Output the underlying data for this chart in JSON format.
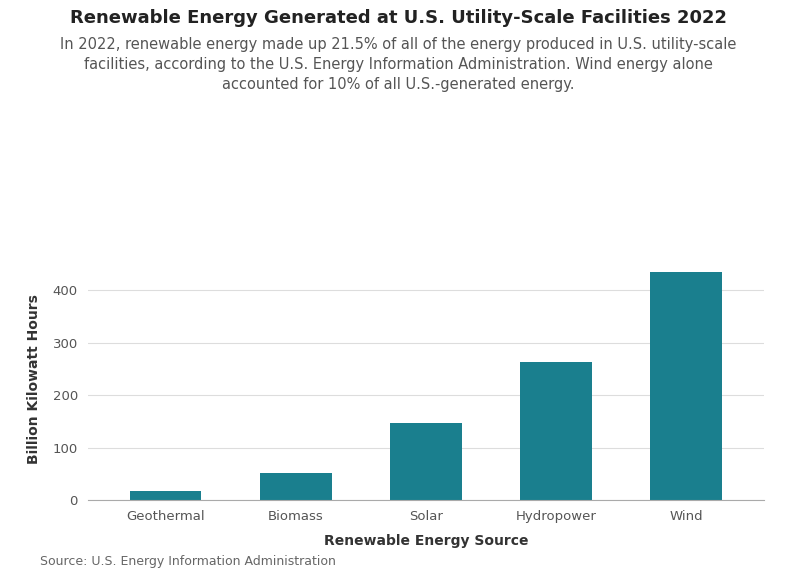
{
  "title": "Renewable Energy Generated at U.S. Utility-Scale Facilities 2022",
  "subtitle": "In 2022, renewable energy made up 21.5% of all of the energy produced in U.S. utility-scale\nfacilities, according to the U.S. Energy Information Administration. Wind energy alone\naccounted for 10% of all U.S.-generated energy.",
  "categories": [
    "Geothermal",
    "Biomass",
    "Solar",
    "Hydropower",
    "Wind"
  ],
  "values": [
    18,
    52,
    147,
    263,
    435
  ],
  "bar_color": "#1a7f8e",
  "xlabel": "Renewable Energy Source",
  "ylabel": "Billion Kilowatt Hours",
  "ylim": [
    0,
    460
  ],
  "yticks": [
    0,
    100,
    200,
    300,
    400
  ],
  "source": "Source: U.S. Energy Information Administration",
  "background_color": "#ffffff",
  "title_fontsize": 13,
  "subtitle_fontsize": 10.5,
  "axis_label_fontsize": 10,
  "tick_fontsize": 9.5,
  "source_fontsize": 9
}
